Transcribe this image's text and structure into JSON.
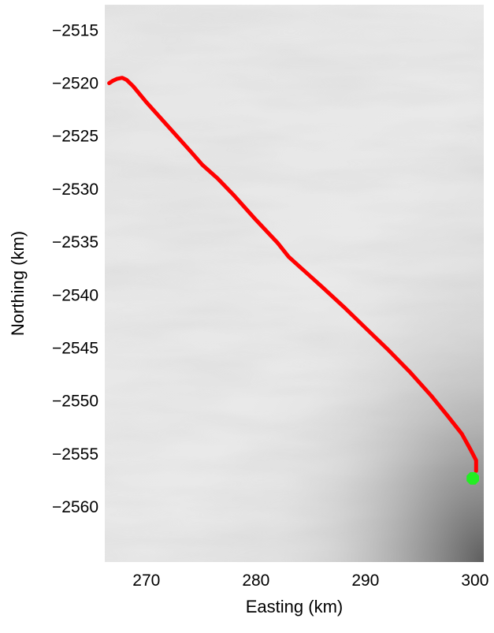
{
  "chart_data": {
    "type": "line",
    "title": "",
    "xlabel": "Easting (km)",
    "ylabel": "Northing (km)",
    "xlim": [
      266.2,
      300.8
    ],
    "ylim": [
      -2565.2,
      -2512.6
    ],
    "xticks": [
      270,
      280,
      290,
      300
    ],
    "xtick_labels": [
      "270",
      "280",
      "290",
      "300"
    ],
    "yticks": [
      -2515,
      -2520,
      -2525,
      -2530,
      -2535,
      -2540,
      -2545,
      -2550,
      -2555,
      -2560
    ],
    "ytick_labels": [
      "−2515",
      "−2520",
      "−2525",
      "−2530",
      "−2535",
      "−2540",
      "−2545",
      "−2550",
      "−2555",
      "−2560"
    ],
    "grid": false,
    "background": "grayscale satellite imagery of ice surface",
    "series": [
      {
        "color": "#ff0000",
        "x": [
          266.6,
          266.9,
          267.3,
          267.8,
          268.2,
          268.8,
          270.0,
          272.0,
          274.0,
          275.1,
          276.5,
          278.0,
          280.0,
          282.0,
          283.0,
          284.5,
          286.0,
          288.0,
          290.0,
          292.0,
          294.0,
          296.0,
          297.5,
          298.8,
          299.6,
          300.1,
          300.1
        ],
        "y": [
          -2520.0,
          -2519.8,
          -2519.6,
          -2519.5,
          -2519.7,
          -2520.3,
          -2521.8,
          -2524.1,
          -2526.4,
          -2527.7,
          -2529.0,
          -2530.6,
          -2532.9,
          -2535.1,
          -2536.4,
          -2537.8,
          -2539.2,
          -2541.1,
          -2543.1,
          -2545.1,
          -2547.2,
          -2549.5,
          -2551.4,
          -2553.1,
          -2554.6,
          -2555.6,
          -2556.6
        ]
      }
    ],
    "marker": {
      "x": 299.8,
      "y": -2557.3,
      "color": "#22ee22",
      "shape": "octagon"
    }
  }
}
